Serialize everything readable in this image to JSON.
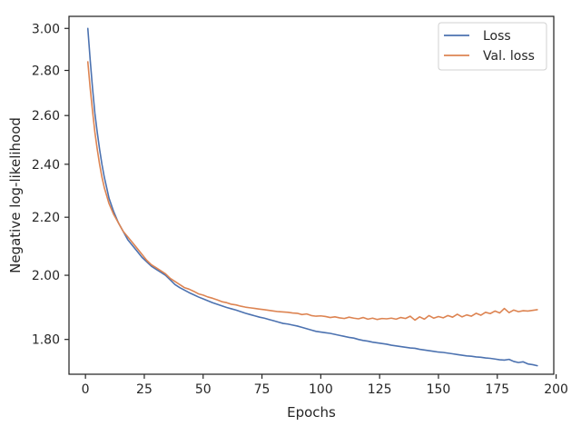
{
  "chart_data": {
    "type": "line",
    "xlabel": "Epochs",
    "ylabel": "Negative log-likelihood",
    "y_scale": "log",
    "xlim": [
      -7,
      199
    ],
    "ylim": [
      1.7,
      3.06
    ],
    "x_ticks": [
      0,
      25,
      50,
      75,
      100,
      125,
      150,
      175,
      200
    ],
    "x_tick_labels": [
      "0",
      "25",
      "50",
      "75",
      "100",
      "125",
      "150",
      "175",
      "200"
    ],
    "y_ticks": [
      3.0,
      2.8,
      2.6,
      2.4,
      2.2,
      2.0,
      1.8
    ],
    "y_tick_labels": [
      "3.00",
      "2.80",
      "2.60",
      "2.40",
      "2.20",
      "2.00",
      "1.80"
    ],
    "grid": false,
    "legend_position": "top-right",
    "series": [
      {
        "name": "Loss",
        "color": "#4c72b0",
        "x": [
          1,
          2,
          3,
          4,
          5,
          6,
          7,
          8,
          9,
          10,
          12,
          14,
          16,
          18,
          20,
          22,
          24,
          26,
          28,
          30,
          32,
          34,
          36,
          38,
          40,
          42,
          44,
          46,
          48,
          50,
          52,
          54,
          56,
          58,
          60,
          62,
          64,
          66,
          68,
          70,
          72,
          74,
          76,
          78,
          80,
          82,
          84,
          86,
          88,
          90,
          92,
          94,
          96,
          98,
          100,
          102,
          104,
          106,
          108,
          110,
          112,
          114,
          116,
          118,
          120,
          122,
          124,
          126,
          128,
          130,
          132,
          134,
          136,
          138,
          140,
          142,
          144,
          146,
          148,
          150,
          152,
          154,
          156,
          158,
          160,
          162,
          164,
          166,
          168,
          170,
          172,
          174,
          176,
          178,
          180,
          182,
          184,
          186,
          188,
          190,
          192
        ],
        "y": [
          3.0,
          2.85,
          2.72,
          2.61,
          2.53,
          2.46,
          2.4,
          2.35,
          2.31,
          2.27,
          2.22,
          2.18,
          2.15,
          2.12,
          2.1,
          2.08,
          2.06,
          2.045,
          2.03,
          2.02,
          2.01,
          2.0,
          1.985,
          1.97,
          1.96,
          1.952,
          1.944,
          1.937,
          1.93,
          1.924,
          1.918,
          1.912,
          1.907,
          1.902,
          1.897,
          1.893,
          1.889,
          1.884,
          1.879,
          1.875,
          1.871,
          1.867,
          1.864,
          1.86,
          1.856,
          1.852,
          1.848,
          1.846,
          1.843,
          1.84,
          1.836,
          1.832,
          1.828,
          1.824,
          1.822,
          1.82,
          1.818,
          1.815,
          1.812,
          1.809,
          1.806,
          1.804,
          1.8,
          1.797,
          1.795,
          1.792,
          1.79,
          1.788,
          1.786,
          1.783,
          1.781,
          1.779,
          1.777,
          1.775,
          1.774,
          1.771,
          1.769,
          1.767,
          1.765,
          1.763,
          1.762,
          1.76,
          1.758,
          1.756,
          1.754,
          1.752,
          1.751,
          1.749,
          1.748,
          1.746,
          1.745,
          1.743,
          1.741,
          1.74,
          1.742,
          1.736,
          1.733,
          1.735,
          1.729,
          1.727,
          1.724
        ]
      },
      {
        "name": "Val. loss",
        "color": "#dd8452",
        "x": [
          1,
          2,
          3,
          4,
          5,
          6,
          7,
          8,
          9,
          10,
          12,
          14,
          16,
          18,
          20,
          22,
          24,
          26,
          28,
          30,
          32,
          34,
          36,
          38,
          40,
          42,
          44,
          46,
          48,
          50,
          52,
          54,
          56,
          58,
          60,
          62,
          64,
          66,
          68,
          70,
          72,
          74,
          76,
          78,
          80,
          82,
          84,
          86,
          88,
          90,
          92,
          94,
          96,
          98,
          100,
          102,
          104,
          106,
          108,
          110,
          112,
          114,
          116,
          118,
          120,
          122,
          124,
          126,
          128,
          130,
          132,
          134,
          136,
          138,
          140,
          142,
          144,
          146,
          148,
          150,
          152,
          154,
          156,
          158,
          160,
          162,
          164,
          166,
          168,
          170,
          172,
          174,
          176,
          178,
          180,
          182,
          184,
          186,
          188,
          190,
          192
        ],
        "y": [
          2.84,
          2.72,
          2.62,
          2.53,
          2.46,
          2.4,
          2.35,
          2.31,
          2.28,
          2.25,
          2.21,
          2.18,
          2.15,
          2.13,
          2.11,
          2.09,
          2.07,
          2.05,
          2.035,
          2.025,
          2.015,
          2.005,
          1.99,
          1.98,
          1.97,
          1.96,
          1.955,
          1.948,
          1.94,
          1.936,
          1.93,
          1.926,
          1.921,
          1.915,
          1.912,
          1.907,
          1.905,
          1.901,
          1.898,
          1.896,
          1.894,
          1.892,
          1.89,
          1.888,
          1.886,
          1.884,
          1.883,
          1.882,
          1.88,
          1.879,
          1.875,
          1.877,
          1.872,
          1.87,
          1.871,
          1.869,
          1.866,
          1.868,
          1.865,
          1.863,
          1.867,
          1.864,
          1.862,
          1.866,
          1.861,
          1.864,
          1.86,
          1.863,
          1.862,
          1.864,
          1.861,
          1.866,
          1.863,
          1.87,
          1.858,
          1.868,
          1.861,
          1.872,
          1.864,
          1.869,
          1.865,
          1.872,
          1.867,
          1.876,
          1.868,
          1.874,
          1.87,
          1.879,
          1.873,
          1.882,
          1.878,
          1.886,
          1.88,
          1.894,
          1.881,
          1.889,
          1.884,
          1.887,
          1.886,
          1.888,
          1.89
        ]
      }
    ]
  }
}
